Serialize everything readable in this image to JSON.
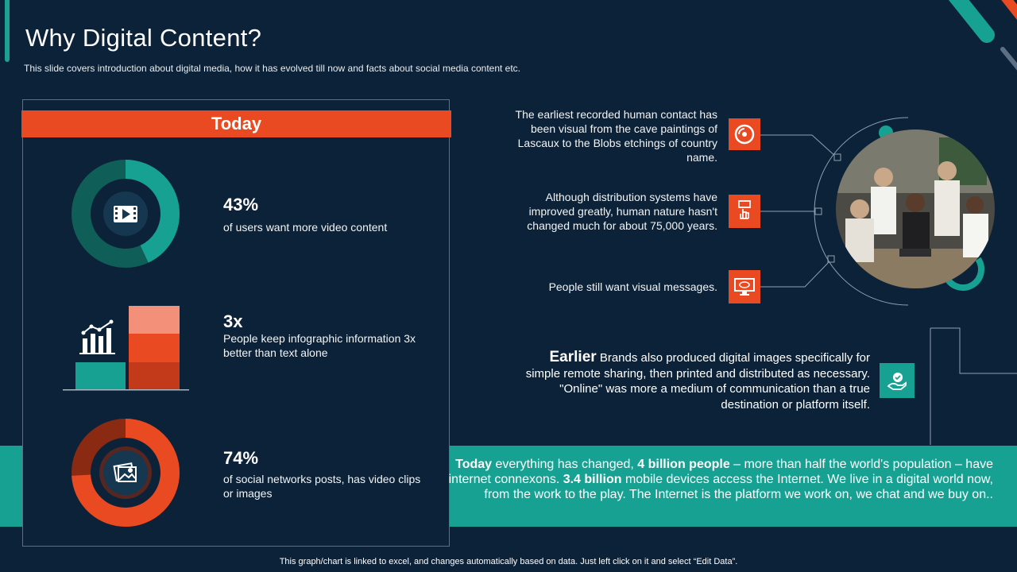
{
  "header": {
    "title": "Why Digital Content?",
    "subtitle": "This slide covers introduction about digital media, how it has evolved  till now and facts about social media content etc."
  },
  "today_panel": {
    "banner": "Today",
    "stats": [
      {
        "value": "43%",
        "description": "of users want more video content",
        "icon": "film-icon",
        "percent": 43
      },
      {
        "value": "3x",
        "description": "People keep infographic information 3x better than text alone",
        "icon": "bar-chart-icon"
      },
      {
        "value": "74%",
        "description": "of social networks posts, has video clips or images",
        "icon": "image-icon",
        "percent": 74
      }
    ]
  },
  "facts": [
    {
      "text": "The earliest recorded human contact has been visual from the cave paintings of Lascaux to the Blobs etchings of country name.",
      "icon": "disc-icon"
    },
    {
      "text": "Although distribution systems have improved greatly, human nature hasn't changed much for about 75,000 years.",
      "icon": "hand-pointer-icon"
    },
    {
      "text": "People still want visual messages.",
      "icon": "monitor-icon"
    }
  ],
  "earlier": {
    "heading": "Earlier",
    "text": " Brands also produced digital images specifically for simple remote sharing, then printed and distributed as necessary. \"Online\" was more a medium of communication than a true destination or platform itself.",
    "icon": "hand-badge-icon"
  },
  "today_summary": {
    "part1_bold": "Today",
    "part2": " everything has changed, ",
    "part3_bold": "4 billion people",
    "part4": " – more than half the world's population – have internet connexons. ",
    "part5_bold": "3.4 billion",
    "part6": " mobile devices access the Internet. We live in a digital world now, from the work to the play. The Internet is the platform we work on, we chat and we buy on.."
  },
  "footnote": "This graph/chart is linked to excel, and changes automatically based on data. Just left click on it and select “Edit Data”.",
  "colors": {
    "background": "#0c2238",
    "accent_orange": "#ea4a22",
    "accent_teal": "#17a192",
    "dark_teal": "#0f5e57"
  }
}
